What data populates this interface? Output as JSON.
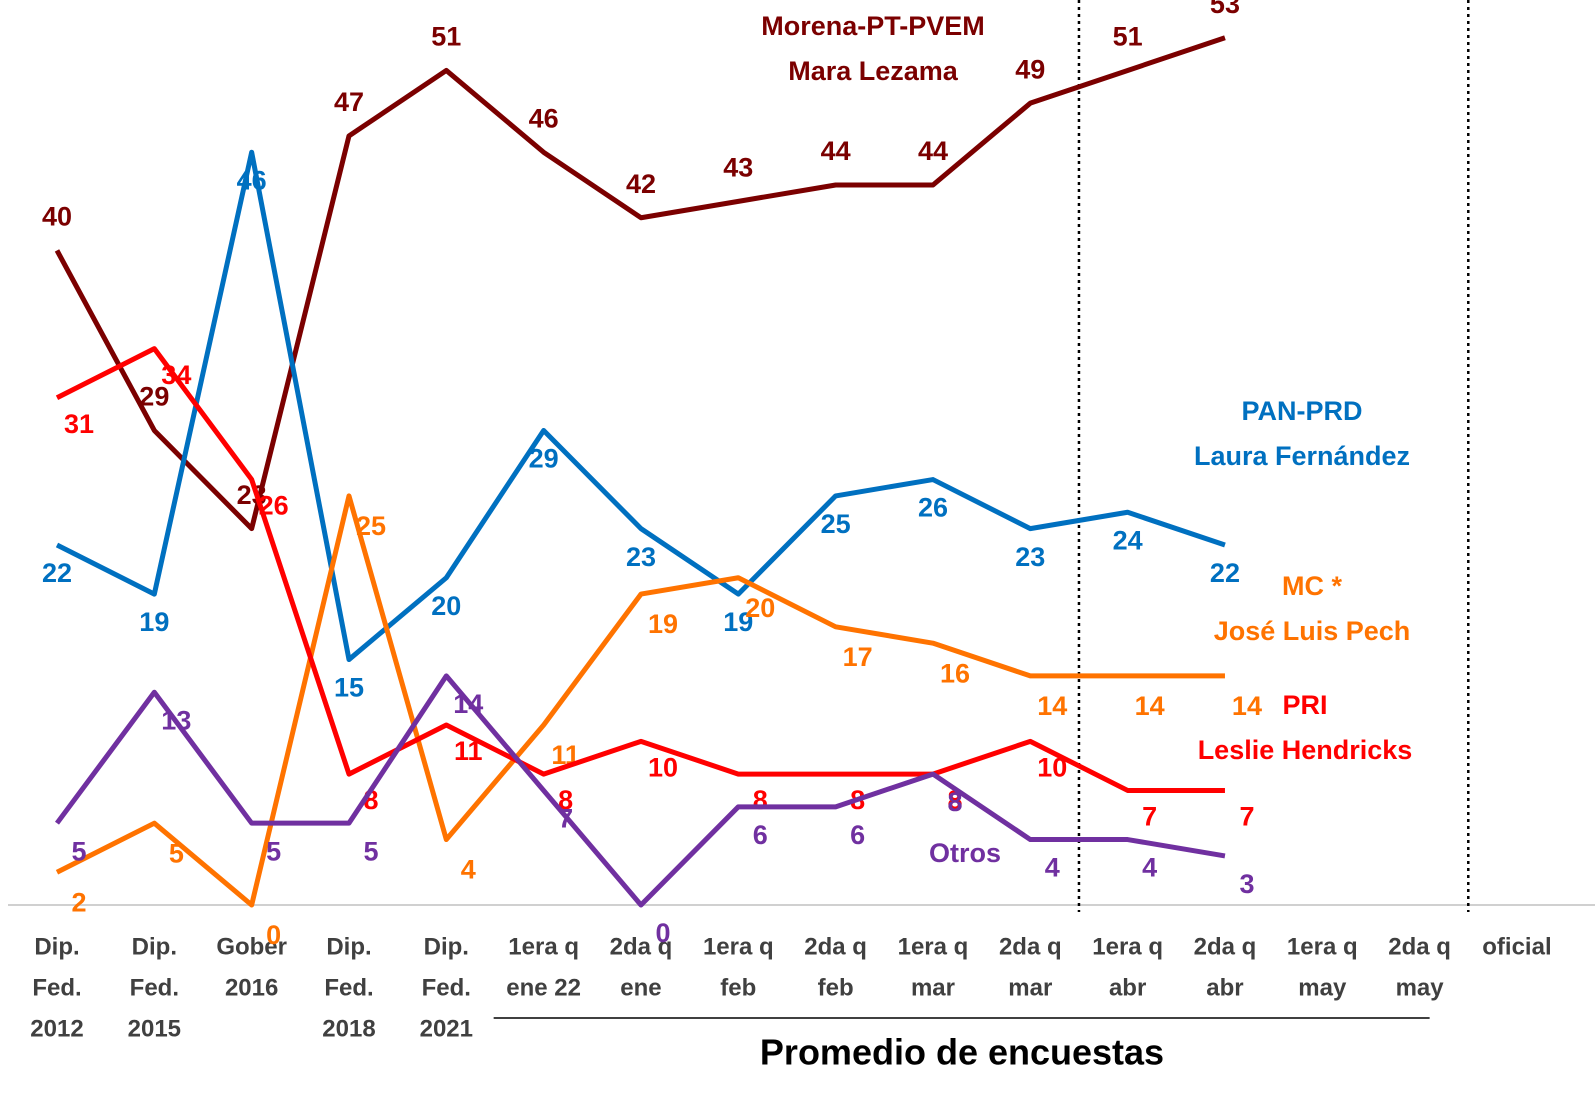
{
  "chart_data": {
    "type": "line",
    "annotation": "Promedio de encuestas",
    "categories": [
      [
        "Dip.",
        "Fed.",
        "2012"
      ],
      [
        "Dip.",
        "Fed.",
        "2015"
      ],
      [
        "Gober",
        "2016"
      ],
      [
        "Dip.",
        "Fed.",
        "2018"
      ],
      [
        "Dip.",
        "Fed.",
        "2021"
      ],
      [
        "1era q",
        "ene 22"
      ],
      [
        "2da q",
        "ene"
      ],
      [
        "1era q",
        "feb"
      ],
      [
        "2da q",
        "feb"
      ],
      [
        "1era q",
        "mar"
      ],
      [
        "2da q",
        "mar"
      ],
      [
        "1era q",
        "abr"
      ],
      [
        "2da q",
        "abr"
      ],
      [
        "1era q",
        "may"
      ],
      [
        "2da q",
        "may"
      ],
      [
        "oficial"
      ]
    ],
    "ylim": [
      0,
      55
    ],
    "series": [
      {
        "name": "Morena-PT-PVEM",
        "candidate": "Mara Lezama",
        "color": "#7b0000",
        "values": [
          40,
          29,
          23,
          47,
          51,
          46,
          42,
          43,
          44,
          44,
          49,
          51,
          53,
          null,
          null,
          null
        ]
      },
      {
        "name": "PAN-PRD",
        "candidate": "Laura Fernández",
        "color": "#0070c0",
        "values": [
          22,
          19,
          46,
          15,
          20,
          29,
          23,
          19,
          25,
          26,
          23,
          24,
          22,
          null,
          null,
          null
        ]
      },
      {
        "name": "MC *",
        "candidate": "José Luis Pech",
        "color": "#ff7300",
        "values": [
          2,
          5,
          0,
          25,
          4,
          11,
          19,
          20,
          17,
          16,
          14,
          14,
          14,
          null,
          null,
          null
        ]
      },
      {
        "name": "PRI",
        "candidate": "Leslie Hendricks",
        "color": "#ff0000",
        "values": [
          31,
          34,
          26,
          8,
          11,
          8,
          10,
          8,
          8,
          8,
          10,
          7,
          7,
          null,
          null,
          null
        ]
      },
      {
        "name": "Otros",
        "color": "#7030a0",
        "values": [
          5,
          13,
          5,
          5,
          14,
          7,
          0,
          6,
          6,
          8,
          4,
          4,
          3,
          null,
          null,
          null
        ]
      }
    ]
  }
}
